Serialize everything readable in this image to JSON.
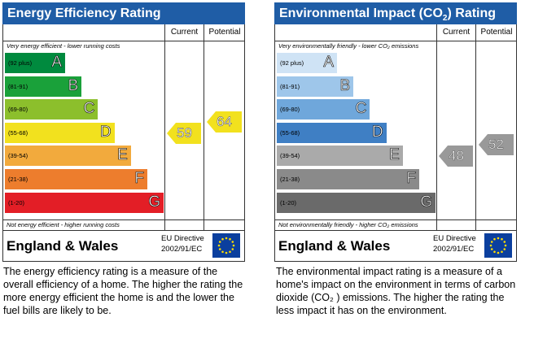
{
  "energy_efficiency": {
    "title": "Energy Efficiency Rating",
    "col_current": "Current",
    "col_potential": "Potential",
    "note_top": "Very energy efficient - lower running costs",
    "note_bottom": "Not energy efficient - higher running costs",
    "region": "England & Wales",
    "directive_line1": "EU Directive",
    "directive_line2": "2002/91/EC",
    "description": "The energy efficiency rating is a measure of the overall efficiency of a home. The higher the rating the more energy efficient the home is and the lower the fuel bills are likely to be.",
    "colors": {
      "title_bg": "#1f5da6",
      "arrow": "#f2e11e"
    },
    "bands": [
      {
        "range": "(92 plus)",
        "letter": "A",
        "color": "#008a3e"
      },
      {
        "range": "(81-91)",
        "letter": "B",
        "color": "#1aa13a"
      },
      {
        "range": "(69-80)",
        "letter": "C",
        "color": "#8cbf2c"
      },
      {
        "range": "(55-68)",
        "letter": "D",
        "color": "#f2e11e"
      },
      {
        "range": "(39-54)",
        "letter": "E",
        "color": "#f2aa3d"
      },
      {
        "range": "(21-38)",
        "letter": "F",
        "color": "#ed7d2d"
      },
      {
        "range": "(1-20)",
        "letter": "G",
        "color": "#e31e26"
      }
    ]
  },
  "environmental_impact": {
    "title_prefix": "Environmental Impact (CO",
    "title_sub": "2",
    "title_suffix": ") Rating",
    "col_current": "Current",
    "col_potential": "Potential",
    "note_top": "Very environmentally friendly - lower CO₂ emissions",
    "note_bottom": "Not environmentally friendly - higher CO₂ emissions",
    "region": "England & Wales",
    "directive_line1": "EU Directive",
    "directive_line2": "2002/91/EC",
    "description": "The environmental impact rating is a measure of a home's impact on the environment in terms of carbon dioxide (CO₂ ) emissions. The higher the rating the less impact it has on the environment.",
    "colors": {
      "title_bg": "#1f5da6",
      "arrow": "#999999"
    },
    "bands": [
      {
        "range": "(92 plus)",
        "letter": "A",
        "color": "#cfe3f5"
      },
      {
        "range": "(81-91)",
        "letter": "B",
        "color": "#9ec6ea"
      },
      {
        "range": "(69-80)",
        "letter": "C",
        "color": "#6fa7db"
      },
      {
        "range": "(55-68)",
        "letter": "D",
        "color": "#3f7fc4"
      },
      {
        "range": "(39-54)",
        "letter": "E",
        "color": "#aaaaaa"
      },
      {
        "range": "(21-38)",
        "letter": "F",
        "color": "#8a8a8a"
      },
      {
        "range": "(1-20)",
        "letter": "G",
        "color": "#6a6a6a"
      }
    ]
  },
  "chart_data": [
    {
      "type": "table",
      "title": "Energy Efficiency Rating",
      "categories": [
        "A",
        "B",
        "C",
        "D",
        "E",
        "F",
        "G"
      ],
      "ranges": [
        "(92 plus)",
        "(81-91)",
        "(69-80)",
        "(55-68)",
        "(39-54)",
        "(21-38)",
        "(1-20)"
      ],
      "series": [
        {
          "name": "Current",
          "value": 59,
          "band": "D"
        },
        {
          "name": "Potential",
          "value": 64,
          "band": "D"
        }
      ]
    },
    {
      "type": "table",
      "title": "Environmental Impact (CO2) Rating",
      "categories": [
        "A",
        "B",
        "C",
        "D",
        "E",
        "F",
        "G"
      ],
      "ranges": [
        "(92 plus)",
        "(81-91)",
        "(69-80)",
        "(55-68)",
        "(39-54)",
        "(21-38)",
        "(1-20)"
      ],
      "series": [
        {
          "name": "Current",
          "value": 48,
          "band": "E"
        },
        {
          "name": "Potential",
          "value": 52,
          "band": "E"
        }
      ]
    }
  ]
}
